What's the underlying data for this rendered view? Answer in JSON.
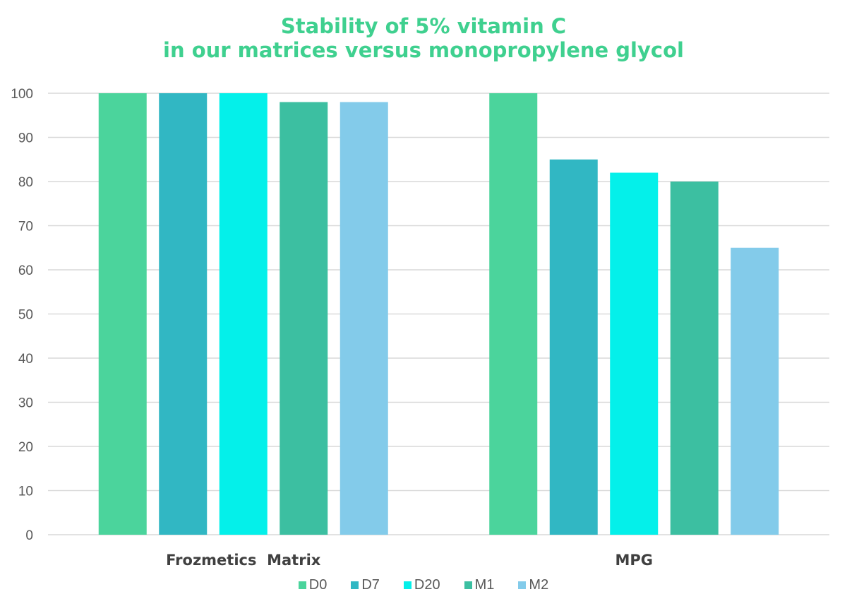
{
  "chart_data": {
    "type": "bar",
    "title": [
      "Stability of 5% vitamin C",
      "in our matrices versus monopropylene glycol"
    ],
    "categories": [
      "Frozmetics  Matrix",
      "MPG"
    ],
    "series": [
      {
        "name": "D0",
        "values": [
          100,
          100
        ],
        "color": "#4bd49c"
      },
      {
        "name": "D7",
        "values": [
          100,
          85
        ],
        "color": "#31b7c3"
      },
      {
        "name": "D20",
        "values": [
          100,
          82
        ],
        "color": "#04f0ea"
      },
      {
        "name": "M1",
        "values": [
          98,
          80
        ],
        "color": "#3cbfa1"
      },
      {
        "name": "M2",
        "values": [
          98,
          65
        ],
        "color": "#83cbea"
      }
    ],
    "xlabel": "",
    "ylabel": "",
    "ylim": [
      0,
      100
    ],
    "yticks": [
      "0",
      "10",
      "20",
      "30",
      "40",
      "50",
      "60",
      "70",
      "80",
      "90",
      "100"
    ],
    "grid": true,
    "legend": "bottom"
  }
}
